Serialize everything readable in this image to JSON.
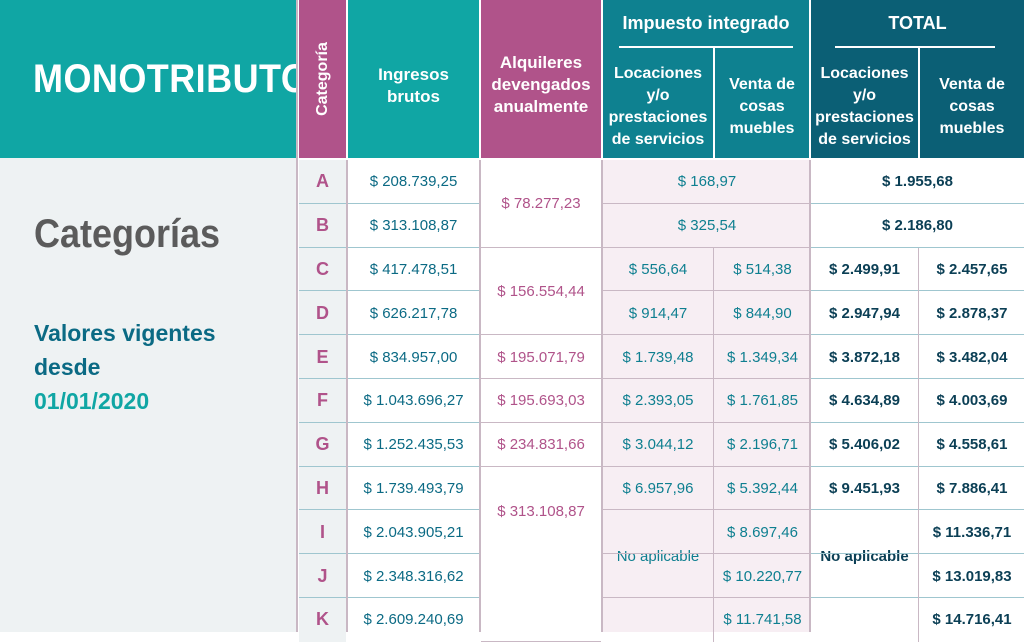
{
  "title": "MONOTRIBUTO",
  "subtitle": "Categorías",
  "valores": "Valores vigentes desde",
  "fecha": "01/01/2020",
  "headers": {
    "categoria": "Categoría",
    "ingresos": "Ingresos brutos",
    "alquileres": "Alquileres devengados anualmente",
    "impuesto": "Impuesto integrado",
    "total": "TOTAL",
    "locaciones": "Locaciones y/o prestaciones de servicios",
    "venta": "Venta de cosas muebles"
  },
  "categories": [
    "A",
    "B",
    "C",
    "D",
    "E",
    "F",
    "G",
    "H",
    "I",
    "J",
    "K"
  ],
  "ingresos": [
    "$ 208.739,25",
    "$ 313.108,87",
    "$ 417.478,51",
    "$ 626.217,78",
    "$ 834.957,00",
    "$ 1.043.696,27",
    "$ 1.252.435,53",
    "$ 1.739.493,79",
    "$ 2.043.905,21",
    "$ 2.348.316,62",
    "$ 2.609.240,69"
  ],
  "alquileres": [
    "$ 78.277,23",
    "$ 156.554,44",
    "$ 195.071,79",
    "$ 195.693,03",
    "$ 234.831,66",
    "$ 313.108,87"
  ],
  "imp_ab": [
    "$ 168,97",
    "$ 325,54"
  ],
  "tot_ab": [
    "$ 1.955,68",
    "$ 2.186,80"
  ],
  "imp_loc": [
    "$ 556,64",
    "$ 914,47",
    "$ 1.739,48",
    "$ 2.393,05",
    "$ 3.044,12",
    "$ 6.957,96"
  ],
  "imp_venta": [
    "$ 514,38",
    "$ 844,90",
    "$ 1.349,34",
    "$ 1.761,85",
    "$ 2.196,71",
    "$ 5.392,44",
    "$ 8.697,46",
    "$ 10.220,77",
    "$ 11.741,58"
  ],
  "tot_loc": [
    "$ 2.499,91",
    "$ 2.947,94",
    "$ 3.872,18",
    "$ 4.634,89",
    "$ 5.406,02",
    "$ 9.451,93"
  ],
  "tot_venta": [
    "$ 2.457,65",
    "$ 2.878,37",
    "$ 3.482,04",
    "$ 4.003,69",
    "$ 4.558,61",
    "$ 7.886,41",
    "$ 11.336,71",
    "$ 13.019,83",
    "$ 14.716,41"
  ],
  "no_aplicable": "No aplicable"
}
